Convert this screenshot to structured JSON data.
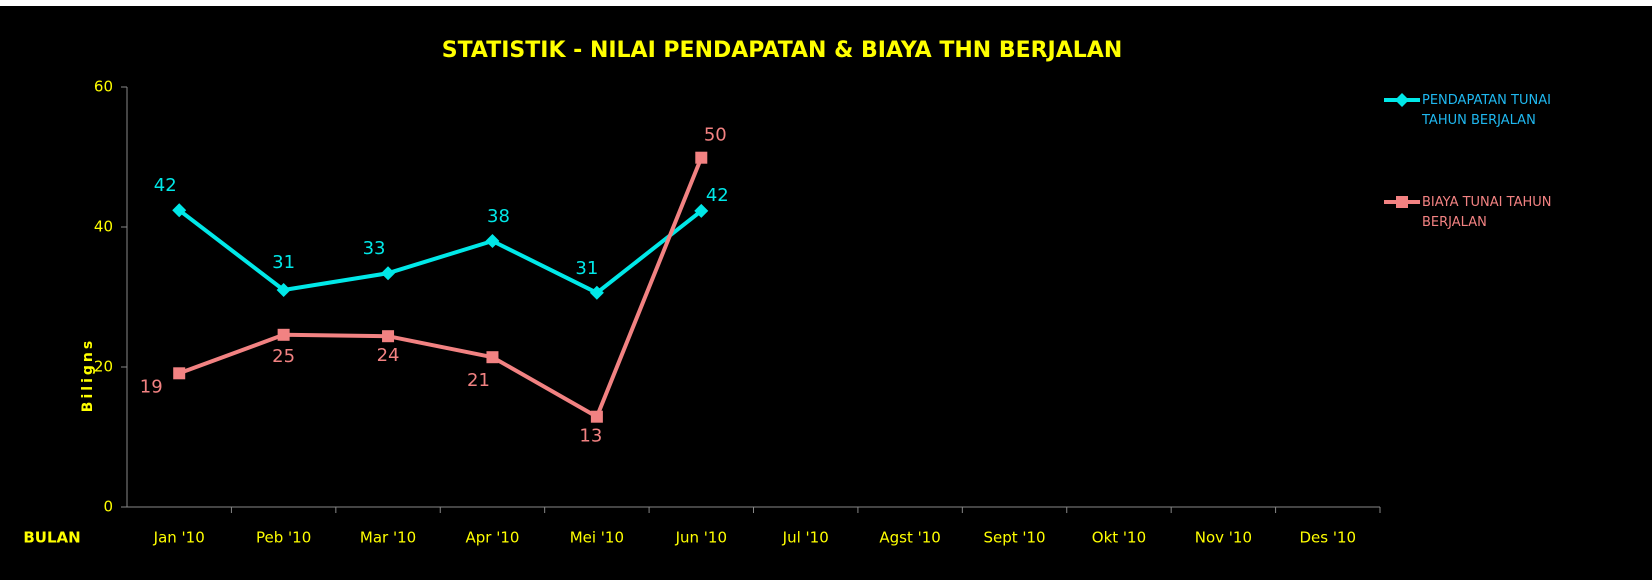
{
  "chart_data": {
    "type": "line",
    "title": "STATISTIK - NILAI PENDAPATAN & BIAYA  THN BERJALAN",
    "x_label": "BULAN",
    "y_label": "Biligns",
    "categories": [
      "Jan '10",
      "Peb '10",
      "Mar '10",
      "Apr '10",
      "Mei '10",
      "Jun '10",
      "Jul '10",
      "Agst '10",
      "Sept '10",
      "Okt '10",
      "Nov '10",
      "Des '10"
    ],
    "series": [
      {
        "name": "PENDAPATAN TUNAI TAHUN BERJALAN",
        "color": "#00e8e8",
        "legend_text_color": "#1fb8f0",
        "marker": "diamond",
        "values": [
          42.4,
          31,
          33.4,
          38,
          30.6,
          42.3,
          null,
          null,
          null,
          null,
          null,
          null
        ],
        "value_labels": [
          "42",
          "31",
          "33",
          "38",
          "31",
          "42",
          null,
          null,
          null,
          null,
          null,
          null
        ]
      },
      {
        "name": "BIAYA TUNAI TAHUN BERJALAN",
        "color": "#f28282",
        "legend_text_color": "#f28282",
        "marker": "square",
        "values": [
          19.1,
          24.6,
          24.4,
          21.4,
          12.9,
          49.9,
          null,
          null,
          null,
          null,
          null,
          null
        ],
        "value_labels": [
          "19",
          "25",
          "24",
          "21",
          "13",
          "50",
          null,
          null,
          null,
          null,
          null,
          null
        ]
      }
    ],
    "ylim": [
      0,
      60
    ],
    "yticks": [
      0,
      20,
      40,
      60
    ],
    "grid": false,
    "legend": "right"
  }
}
